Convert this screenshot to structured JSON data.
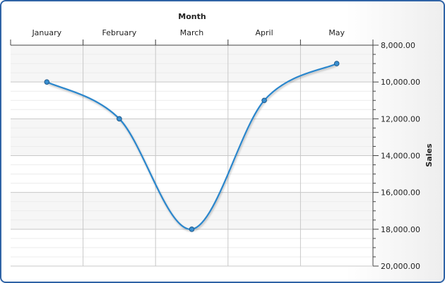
{
  "chart_data": {
    "type": "line",
    "xlabel": "Month",
    "ylabel": "Sales",
    "categories": [
      "January",
      "February",
      "March",
      "April",
      "May"
    ],
    "series": [
      {
        "values": [
          10000,
          12000,
          18000,
          11000,
          9000
        ],
        "color": "#2b86cc"
      }
    ],
    "y_ticks": [
      "8,000.00",
      "10,000.00",
      "12,000.00",
      "14,000.00",
      "16,000.00",
      "18,000.00",
      "20,000.00"
    ],
    "ylim": [
      8000,
      20000
    ],
    "y_reversed": true,
    "x_axis_position": "top",
    "y_axis_position": "right",
    "grid": true
  }
}
